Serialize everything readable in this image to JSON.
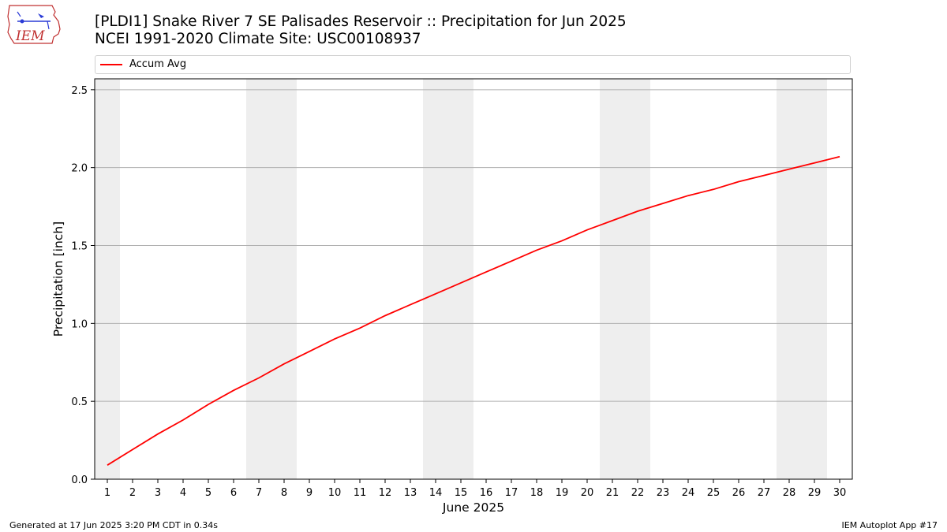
{
  "header": {
    "logo_text": "IEM",
    "title": "[PLDI1] Snake River 7 SE Palisades Reservoir :: Precipitation for Jun 2025",
    "subtitle": "NCEI 1991-2020 Climate Site: USC00108937"
  },
  "legend": {
    "series_label": "Accum Avg"
  },
  "footer": {
    "generated": "Generated at 17 Jun 2025 3:20 PM CDT in 0.34s",
    "app": "IEM Autoplot App #17"
  },
  "colors": {
    "series": "#ff0000",
    "weekend_band": "#eeeeee",
    "grid": "#b0b0b0"
  },
  "chart_data": {
    "type": "line",
    "xlabel": "June 2025",
    "ylabel": "Precipitation [inch]",
    "xlim": [
      0.5,
      30.5
    ],
    "ylim": [
      0,
      2.57
    ],
    "x": [
      1,
      2,
      3,
      4,
      5,
      6,
      7,
      8,
      9,
      10,
      11,
      12,
      13,
      14,
      15,
      16,
      17,
      18,
      19,
      20,
      21,
      22,
      23,
      24,
      25,
      26,
      27,
      28,
      29,
      30
    ],
    "x_tick_labels": [
      "1",
      "2",
      "3",
      "4",
      "5",
      "6",
      "7",
      "8",
      "9",
      "10",
      "11",
      "12",
      "13",
      "14",
      "15",
      "16",
      "17",
      "18",
      "19",
      "20",
      "21",
      "22",
      "23",
      "24",
      "25",
      "26",
      "27",
      "28",
      "29",
      "30"
    ],
    "y_ticks": [
      0,
      0.5,
      1.0,
      1.5,
      2.0,
      2.5
    ],
    "y_tick_labels": [
      "0.0",
      "0.5",
      "1.0",
      "1.5",
      "2.0",
      "2.5"
    ],
    "grid": "horizontal",
    "legend_position": "top",
    "weekend_bands": [
      [
        0.5,
        1.5
      ],
      [
        6.5,
        8.5
      ],
      [
        13.5,
        15.5
      ],
      [
        20.5,
        22.5
      ],
      [
        27.5,
        29.5
      ]
    ],
    "series": [
      {
        "name": "Accum Avg",
        "values": [
          0.09,
          0.19,
          0.29,
          0.38,
          0.48,
          0.57,
          0.65,
          0.74,
          0.82,
          0.9,
          0.97,
          1.05,
          1.12,
          1.19,
          1.26,
          1.33,
          1.4,
          1.47,
          1.53,
          1.6,
          1.66,
          1.72,
          1.77,
          1.82,
          1.86,
          1.91,
          1.95,
          1.99,
          2.03,
          2.07
        ]
      }
    ]
  }
}
